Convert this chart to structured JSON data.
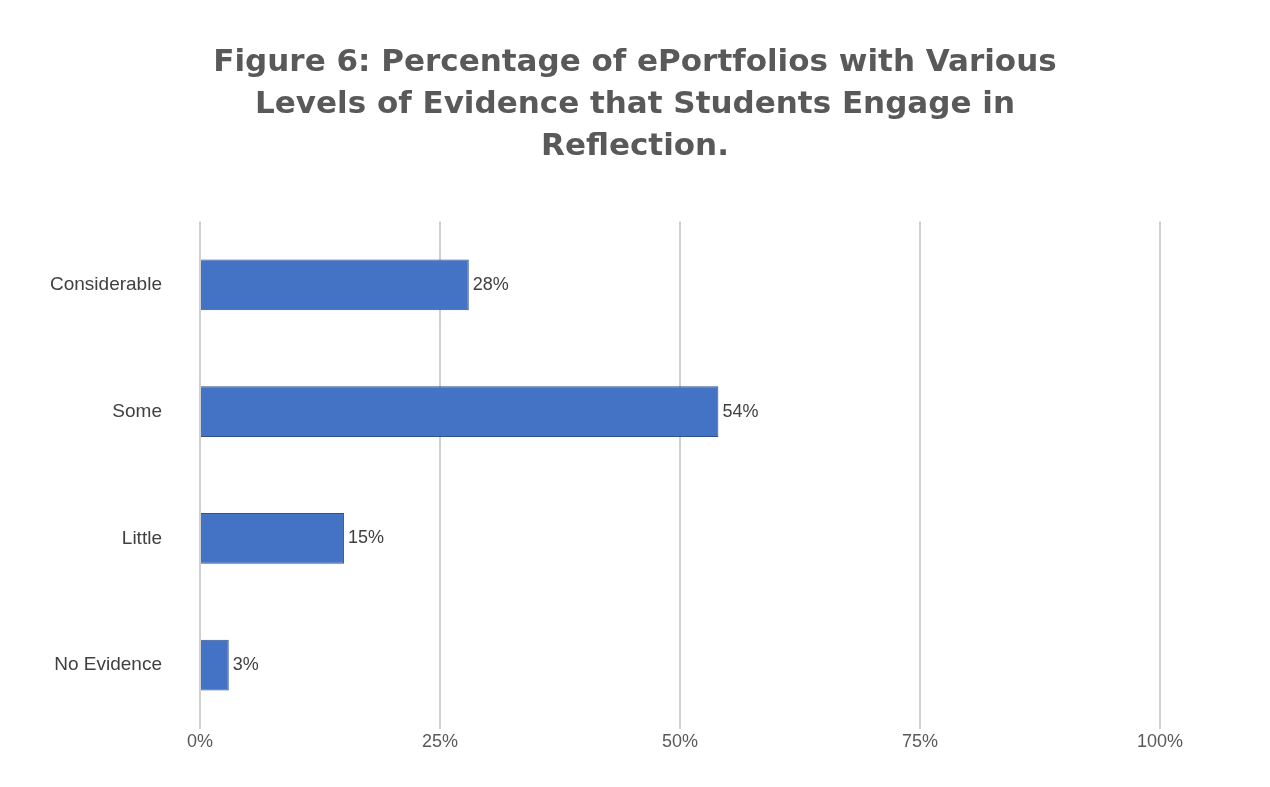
{
  "chart_data": {
    "type": "bar",
    "orientation": "horizontal",
    "title": "Figure 6: Percentage of ePortfolios with Various Levels of Evidence that Students Engage in Reflection.",
    "categories": [
      "Considerable",
      "Some",
      "Little",
      "No Evidence"
    ],
    "values": [
      28,
      54,
      15,
      3
    ],
    "color": "#4472c4",
    "value_labels": [
      "28%",
      "54%",
      "15%",
      "3%"
    ],
    "xlim": [
      0,
      100
    ],
    "xticks": [
      {
        "value": 0,
        "label": "0%"
      },
      {
        "value": 25,
        "label": "25%"
      },
      {
        "value": 50,
        "label": "50%"
      },
      {
        "value": 75,
        "label": "75%"
      },
      {
        "value": 100,
        "label": "100%"
      }
    ],
    "grid": "x",
    "legend": false
  }
}
